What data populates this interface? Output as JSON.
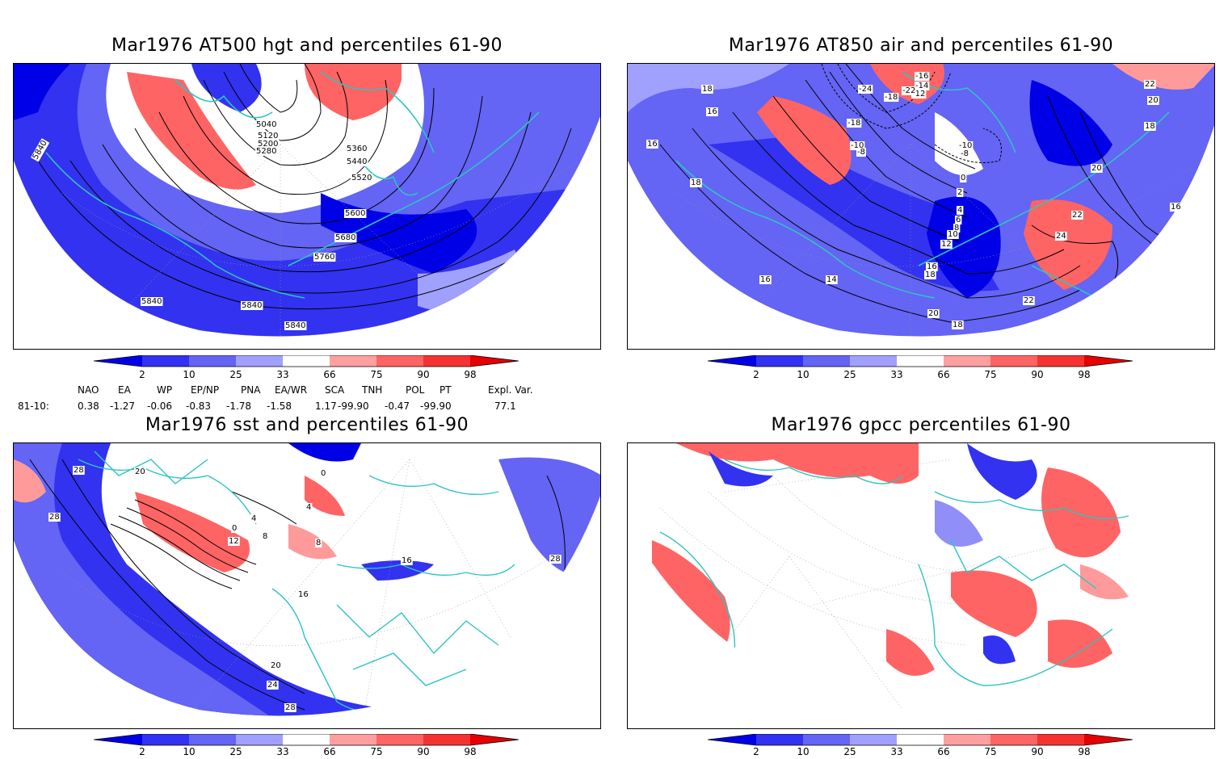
{
  "panels": [
    {
      "id": "p1",
      "title": "Mar1976 AT500 hgt and percentiles 61-90",
      "contour_labels": [
        "5840",
        "5040",
        "5120",
        "5200",
        "5280",
        "5360",
        "5440",
        "5520",
        "5600",
        "5680",
        "5760",
        "5840",
        "5840",
        "5840"
      ]
    },
    {
      "id": "p2",
      "title": "Mar1976 AT850 air and percentiles 61-90",
      "contour_labels": [
        "18",
        "16",
        "16",
        "18",
        "-24",
        "-16",
        "-14",
        "-12",
        "-18",
        "-22",
        "-18",
        "-10",
        "-8",
        "-10",
        "-8",
        "0",
        "2",
        "4",
        "6",
        "8",
        "10",
        "12",
        "16",
        "18",
        "14",
        "16",
        "20",
        "18",
        "22",
        "22",
        "24",
        "20",
        "16",
        "22",
        "18",
        "20"
      ]
    },
    {
      "id": "p3",
      "title": "Mar1976 sst and percentiles 61-90",
      "contour_labels": [
        "28",
        "20",
        "28",
        "0",
        "4",
        "8",
        "12",
        "0",
        "4",
        "8",
        "16",
        "16",
        "20",
        "24",
        "28",
        "28"
      ]
    },
    {
      "id": "p4",
      "title": "Mar1976 gpcc percentiles 61-90",
      "contour_labels": []
    }
  ],
  "colorbar": {
    "labels": [
      "2",
      "10",
      "25",
      "33",
      "66",
      "75",
      "90",
      "98"
    ],
    "colors": {
      "b1": "#0000e6",
      "b2": "#3232f0",
      "b3": "#6464f5",
      "b4": "#a0a0ff",
      "w": "#ffffff",
      "r1": "#ffa0a0",
      "r2": "#ff6464",
      "r3": "#f53232",
      "r4": "#e60000"
    }
  },
  "teleconnections": {
    "row_label": "81-10:",
    "headers": [
      "NAO",
      "EA",
      "WP",
      "EP/NP",
      "PNA",
      "EA/WR",
      "SCA",
      "TNH",
      "POL",
      "PT",
      "Expl. Var."
    ],
    "values": [
      "0.38",
      "-1.27",
      "-0.06",
      "-0.83",
      "-1.78",
      "-1.58",
      "1.17",
      "-99.90",
      "-0.47",
      "-99.90",
      "77.1"
    ]
  },
  "map_colors": {
    "coast": "#2ec4c0",
    "blue": "#3a3af2",
    "lightblue": "#8f8ff7",
    "red": "#f24a4a",
    "lightred": "#ff9a9a",
    "grid": "#999999"
  }
}
